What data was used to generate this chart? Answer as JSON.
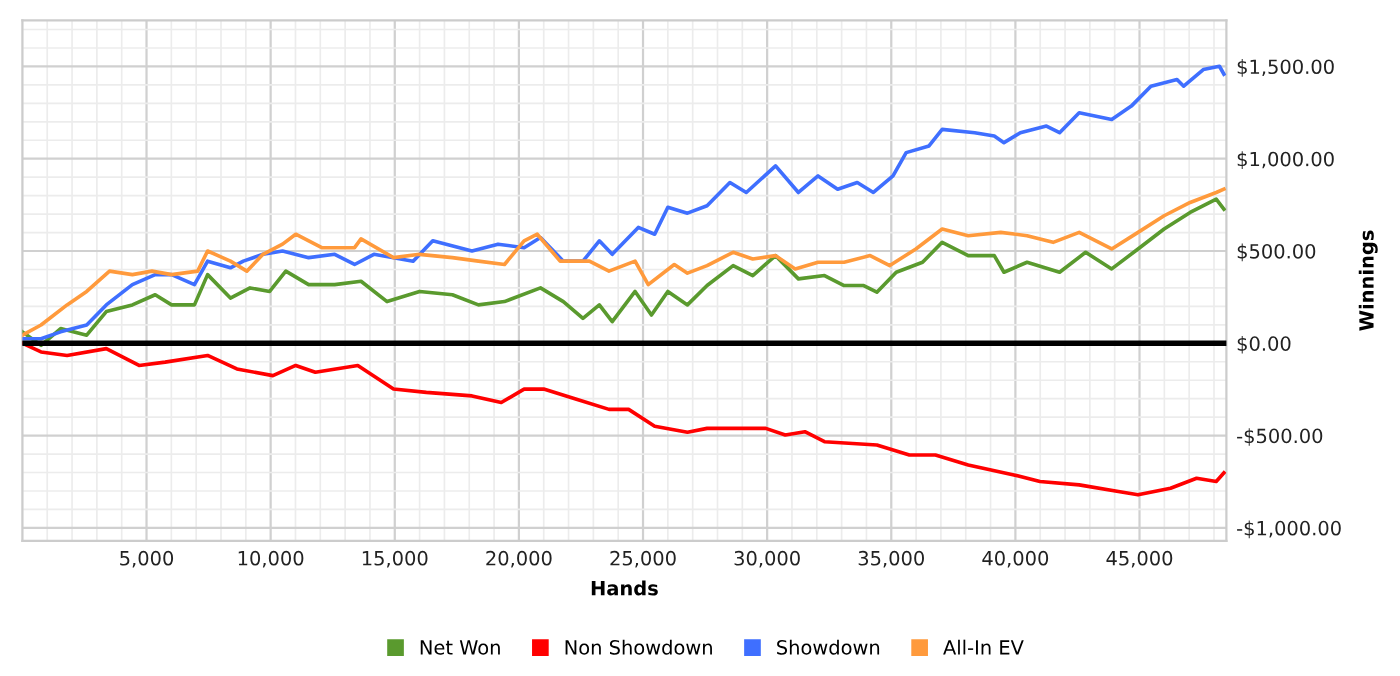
{
  "chart_data": {
    "type": "line",
    "xlabel": "Hands",
    "ylabel": "Winnings",
    "xlim": [
      0,
      48500
    ],
    "ylim": [
      -1070,
      1750
    ],
    "xticks": [
      {
        "value": 5000,
        "label": "5,000"
      },
      {
        "value": 10000,
        "label": "10,000"
      },
      {
        "value": 15000,
        "label": "15,000"
      },
      {
        "value": 20000,
        "label": "20,000"
      },
      {
        "value": 25000,
        "label": "25,000"
      },
      {
        "value": 30000,
        "label": "30,000"
      },
      {
        "value": 35000,
        "label": "35,000"
      },
      {
        "value": 40000,
        "label": "40,000"
      },
      {
        "value": 45000,
        "label": "45,000"
      }
    ],
    "yticks": [
      {
        "value": -1000,
        "label": "-$1,000.00"
      },
      {
        "value": -500,
        "label": "-$500.00"
      },
      {
        "value": 0,
        "label": "$0.00"
      },
      {
        "value": 500,
        "label": "$500.00"
      },
      {
        "value": 1000,
        "label": "$1,000.00"
      },
      {
        "value": 1500,
        "label": "$1,500.00"
      }
    ],
    "grid": true,
    "legend": "bottom",
    "marker": "none",
    "line_style": "solid",
    "ref_lines": [
      {
        "axis": "y",
        "value": 0,
        "color": "#000000"
      }
    ],
    "series": [
      {
        "name": "Net Won",
        "color": "#5a9a2e",
        "x": [
          0,
          750,
          1540,
          2590,
          3380,
          4430,
          5350,
          6010,
          6930,
          7460,
          8380,
          9170,
          9960,
          10610,
          11530,
          12580,
          13640,
          14690,
          16000,
          17320,
          18370,
          19420,
          20870,
          21790,
          22580,
          23240,
          23760,
          24680,
          25340,
          26000,
          26790,
          27580,
          28630,
          29420,
          30340,
          31260,
          32310,
          33100,
          33890,
          34420,
          35200,
          36260,
          37050,
          38100,
          39150,
          39540,
          40470,
          41780,
          42830,
          43880,
          44940,
          45990,
          47040,
          48090,
          48400
        ],
        "values": [
          62,
          -11,
          80,
          44,
          172,
          208,
          263,
          208,
          208,
          372,
          245,
          300,
          281,
          391,
          318,
          318,
          336,
          226,
          281,
          263,
          208,
          226,
          300,
          226,
          135,
          208,
          117,
          281,
          153,
          281,
          208,
          313,
          421,
          367,
          475,
          349,
          367,
          313,
          313,
          277,
          385,
          439,
          547,
          475,
          475,
          385,
          439,
          385,
          493,
          403,
          511,
          619,
          709,
          781,
          727
        ]
      },
      {
        "name": "Non Showdown",
        "color": "#ff0000",
        "x": [
          0,
          750,
          1800,
          3380,
          4700,
          5750,
          7460,
          8640,
          10090,
          11010,
          11800,
          13510,
          14950,
          16270,
          18110,
          19290,
          20210,
          21000,
          22320,
          23630,
          24420,
          25470,
          26790,
          27580,
          28630,
          29945,
          30730,
          31520,
          32310,
          34420,
          35730,
          36780,
          38100,
          39940,
          40990,
          42570,
          44150,
          44940,
          46250,
          47300,
          48090,
          48400
        ],
        "values": [
          0,
          -47,
          -66,
          -29,
          -120,
          -102,
          -66,
          -139,
          -175,
          -120,
          -157,
          -120,
          -248,
          -266,
          -285,
          -321,
          -248,
          -248,
          -303,
          -358,
          -358,
          -449,
          -482,
          -461,
          -461,
          -461,
          -497,
          -479,
          -533,
          -551,
          -605,
          -605,
          -659,
          -713,
          -749,
          -767,
          -803,
          -821,
          -785,
          -731,
          -749,
          -702
        ]
      },
      {
        "name": "Showdown",
        "color": "#3f6fff",
        "x": [
          0,
          750,
          1540,
          2590,
          3380,
          4430,
          5350,
          6010,
          6930,
          7460,
          8380,
          8900,
          9690,
          10480,
          11530,
          12580,
          13380,
          14160,
          15740,
          16530,
          18110,
          19160,
          20210,
          20870,
          21790,
          22580,
          23240,
          23760,
          24810,
          25470,
          26000,
          26790,
          27580,
          28500,
          29160,
          30340,
          31260,
          32050,
          32840,
          33630,
          34280,
          35070,
          35600,
          36520,
          37050,
          38360,
          39150,
          39540,
          40200,
          41250,
          41780,
          42570,
          43880,
          44670,
          45460,
          46510,
          46780,
          47570,
          48220,
          48400
        ],
        "values": [
          25,
          25,
          62,
          99,
          208,
          318,
          372,
          372,
          318,
          445,
          409,
          445,
          482,
          500,
          464,
          482,
          427,
          482,
          445,
          555,
          500,
          537,
          518,
          573,
          445,
          445,
          555,
          482,
          628,
          591,
          737,
          705,
          745,
          871,
          817,
          961,
          817,
          907,
          835,
          871,
          817,
          907,
          1033,
          1069,
          1159,
          1141,
          1123,
          1087,
          1141,
          1177,
          1141,
          1249,
          1213,
          1285,
          1393,
          1429,
          1393,
          1483,
          1501,
          1458
        ]
      },
      {
        "name": "All-In EV",
        "color": "#ff9a3c",
        "x": [
          0,
          750,
          1800,
          2590,
          3510,
          4430,
          5220,
          6010,
          7060,
          7460,
          8380,
          9040,
          9690,
          10480,
          11010,
          12060,
          13380,
          13640,
          14950,
          16000,
          17320,
          18370,
          19420,
          20210,
          20740,
          21660,
          22840,
          23630,
          24680,
          25210,
          26260,
          26790,
          27580,
          28630,
          29420,
          30340,
          31130,
          32050,
          33100,
          34150,
          34940,
          35990,
          37050,
          38100,
          39410,
          40470,
          41520,
          42570,
          43880,
          44940,
          45990,
          47040,
          48090,
          48400
        ],
        "values": [
          44,
          99,
          208,
          281,
          391,
          372,
          391,
          372,
          391,
          500,
          445,
          391,
          482,
          537,
          591,
          518,
          518,
          566,
          464,
          482,
          464,
          445,
          427,
          555,
          591,
          445,
          445,
          391,
          445,
          318,
          427,
          380,
          421,
          493,
          457,
          475,
          403,
          439,
          439,
          475,
          421,
          511,
          619,
          583,
          601,
          583,
          547,
          601,
          511,
          601,
          691,
          763,
          817,
          835
        ]
      }
    ]
  }
}
